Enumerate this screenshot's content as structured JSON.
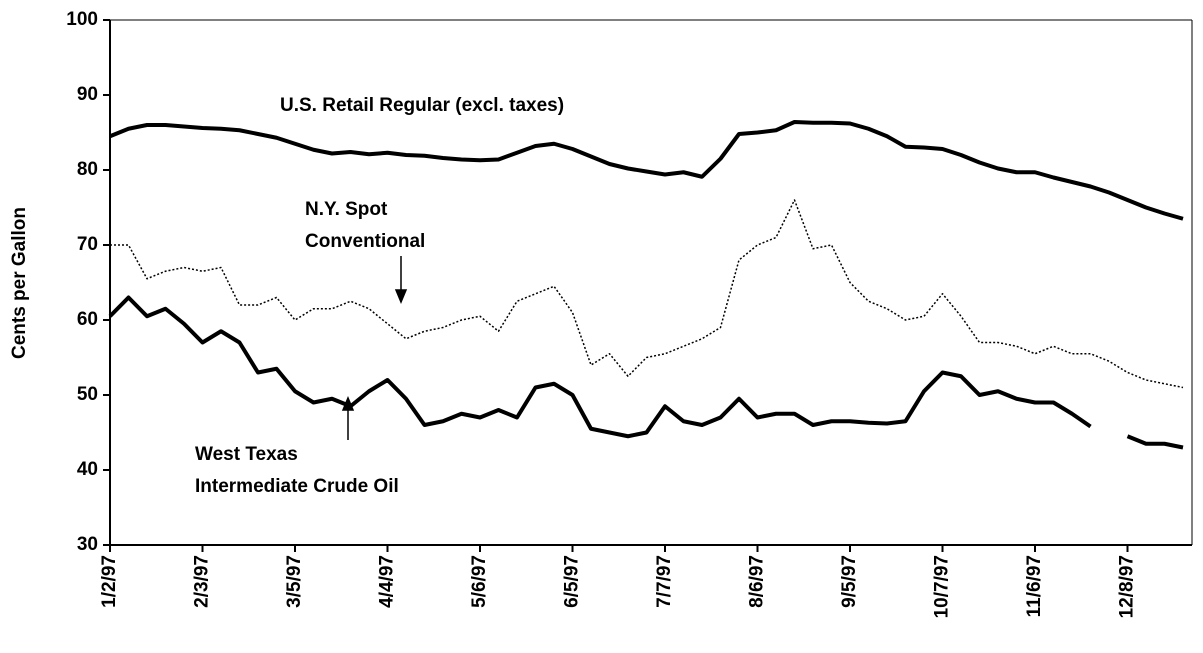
{
  "chart_data": {
    "type": "line",
    "y_label": "Cents per Gallon",
    "ylim": [
      30,
      100
    ],
    "yticks": [
      30,
      40,
      50,
      60,
      70,
      80,
      90,
      100
    ],
    "categories": [
      "1/2/97",
      null,
      null,
      null,
      null,
      "2/3/97",
      null,
      null,
      null,
      null,
      "3/5/97",
      null,
      null,
      null,
      null,
      "4/4/97",
      null,
      null,
      null,
      null,
      "5/6/97",
      null,
      null,
      null,
      null,
      "6/5/97",
      null,
      null,
      null,
      null,
      "7/7/97",
      null,
      null,
      null,
      null,
      "8/6/97",
      null,
      null,
      null,
      null,
      "9/5/97",
      null,
      null,
      null,
      null,
      "10/7/97",
      null,
      null,
      null,
      null,
      "11/6/97",
      null,
      null,
      null,
      null,
      "12/8/97",
      null,
      null,
      null
    ],
    "series": [
      {
        "color": "#000000",
        "style": "solid",
        "values": [
          84.5,
          85.5,
          86,
          86,
          85.8,
          85.6,
          85.5,
          85.3,
          84.8,
          84.3,
          83.5,
          82.7,
          82.2,
          82.4,
          82.1,
          82.3,
          82,
          81.9,
          81.6,
          81.4,
          81.3,
          81.4,
          82.3,
          83.2,
          83.5,
          82.8,
          81.8,
          80.8,
          80.2,
          79.8,
          79.4,
          79.7,
          79.1,
          81.5,
          84.8,
          85,
          85.3,
          86.4,
          86.3,
          86.3,
          86.2,
          85.5,
          84.5,
          83.1,
          83,
          82.8,
          82,
          81,
          80.2,
          79.7,
          79.7,
          79,
          78.4,
          77.8,
          77,
          76,
          75,
          74.2,
          73.5
        ]
      },
      {
        "color": "#000000",
        "style": "dotted",
        "values": [
          70,
          70,
          65.5,
          66.5,
          67,
          66.5,
          67,
          62,
          62,
          63,
          60,
          61.5,
          61.5,
          62.5,
          61.5,
          59.5,
          57.5,
          58.5,
          59,
          60,
          60.5,
          58.5,
          62.5,
          63.5,
          64.5,
          61,
          54,
          55.5,
          52.5,
          55,
          55.5,
          56.5,
          57.5,
          59,
          68,
          70,
          71,
          76,
          69.5,
          70,
          65,
          62.5,
          61.5,
          60,
          60.5,
          63.5,
          60.5,
          57,
          57,
          56.5,
          55.5,
          56.5,
          55.5,
          55.5,
          54.5,
          53,
          52,
          51.5,
          51
        ]
      },
      {
        "color": "#000000",
        "style": "solid",
        "values": [
          60.5,
          63,
          60.5,
          61.5,
          59.5,
          57,
          58.5,
          57,
          53,
          53.5,
          50.5,
          49,
          49.5,
          48.5,
          50.5,
          52,
          49.5,
          46,
          46.5,
          47.5,
          47,
          48,
          47,
          51,
          51.5,
          50,
          45.5,
          45,
          44.5,
          45,
          48.5,
          46.5,
          46,
          47,
          49.5,
          47,
          47.5,
          47.5,
          46,
          46.5,
          46.5,
          46.3,
          46.2,
          46.5,
          50.5,
          53,
          52.5,
          50,
          50.5,
          49.5,
          49,
          49,
          47.5,
          45.8,
          null,
          44.5,
          43.5,
          43.5,
          43
        ]
      }
    ],
    "annotations": [
      [
        "U.S. Retail Regular (excl. taxes)"
      ],
      [
        "N.Y. Spot",
        "Conventional"
      ],
      [
        "West Texas",
        "Intermediate Crude Oil"
      ]
    ]
  }
}
